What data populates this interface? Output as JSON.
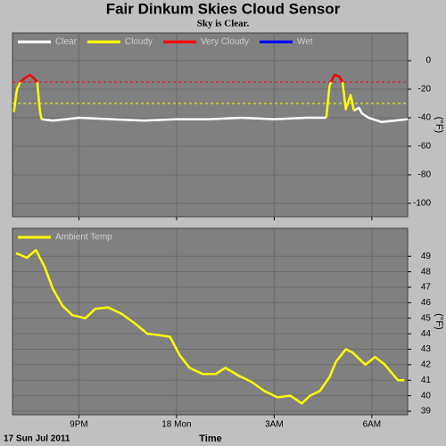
{
  "chart_data": [
    {
      "type": "line",
      "title": "Fair Dinkum Skies Cloud Sensor",
      "subtitle": "Sky is Clear.",
      "ylabel": "(°F)",
      "ylim": [
        -109.4,
        19.4
      ],
      "yticks": [
        0,
        -20,
        -40,
        -60,
        -80,
        -100
      ],
      "xlim": [
        18.96,
        31.1
      ],
      "xticks": [
        21,
        24,
        27,
        30
      ],
      "grid": true,
      "legend": "top-left",
      "x": [
        19.0,
        19.1,
        19.2,
        19.35,
        19.5,
        19.65,
        19.72,
        19.8,
        19.85,
        20.2,
        21.0,
        22.0,
        23.0,
        24.0,
        25.0,
        26.0,
        27.0,
        28.0,
        28.6,
        28.7,
        28.75,
        28.85,
        29.0,
        29.1,
        29.2,
        29.35,
        29.45,
        29.6,
        29.7,
        29.9,
        30.3,
        30.7,
        31.1
      ],
      "series": [
        {
          "name": "Clear",
          "color": "#ffffff",
          "values": [
            null,
            null,
            null,
            null,
            null,
            null,
            null,
            null,
            -41,
            -42,
            -40,
            -41,
            -42,
            -41,
            -41,
            -40,
            -41,
            -40,
            -40,
            null,
            null,
            null,
            null,
            null,
            null,
            null,
            -35,
            -33,
            -37,
            -40,
            -43,
            -42,
            -41
          ]
        },
        {
          "name": "Cloudy",
          "color": "#ffff00",
          "values": [
            -36,
            -20,
            -15,
            null,
            null,
            null,
            -15,
            -35,
            -41,
            null,
            null,
            null,
            null,
            null,
            null,
            null,
            null,
            null,
            -40,
            -18,
            -15,
            null,
            null,
            -15,
            -34,
            -24,
            -35,
            null,
            null,
            null,
            null,
            null,
            null
          ]
        },
        {
          "name": "Very Cloudy",
          "color": "#ff0000",
          "values": [
            null,
            null,
            -15,
            -12,
            -10,
            -13,
            -15,
            null,
            null,
            null,
            null,
            null,
            null,
            null,
            null,
            null,
            null,
            null,
            null,
            null,
            -15,
            -10,
            -11,
            -15,
            null,
            null,
            null,
            null,
            null,
            null,
            null,
            null,
            null
          ]
        },
        {
          "name": "Wet",
          "color": "#0000ff",
          "values": [
            null,
            null,
            null,
            null,
            null,
            null,
            null,
            null,
            null,
            null,
            null,
            null,
            null,
            null,
            null,
            null,
            null,
            null,
            null,
            null,
            null,
            null,
            null,
            null,
            null,
            null,
            null,
            null,
            null,
            null,
            null,
            null,
            null
          ]
        }
      ],
      "thresholds": [
        {
          "value": -15,
          "color": "#ff0000"
        },
        {
          "value": -30,
          "color": "#ffff00"
        }
      ]
    },
    {
      "type": "line",
      "xlabel": "Time",
      "annotation": "17 Sun Jul 2011",
      "ylabel": "(°F)",
      "ylim": [
        38.77,
        50.8
      ],
      "yticks": [
        39,
        40,
        41,
        42,
        43,
        44,
        45,
        46,
        47,
        48,
        49
      ],
      "xlim": [
        18.96,
        31.1
      ],
      "xticks": [
        {
          "value": 21,
          "label": "9PM"
        },
        {
          "value": 24,
          "label": "18 Mon"
        },
        {
          "value": 27,
          "label": "3AM"
        },
        {
          "value": 30,
          "label": "6AM"
        }
      ],
      "grid": true,
      "legend": "top-left",
      "x": [
        19.07,
        19.4,
        19.68,
        19.95,
        20.2,
        20.5,
        20.8,
        21.2,
        21.5,
        21.9,
        22.3,
        22.7,
        23.1,
        23.5,
        23.8,
        24.1,
        24.4,
        24.8,
        25.2,
        25.5,
        25.9,
        26.3,
        26.7,
        27.1,
        27.5,
        27.85,
        28.1,
        28.4,
        28.7,
        28.9,
        29.2,
        29.4,
        29.8,
        30.1,
        30.4,
        30.8,
        31.0
      ],
      "series": [
        {
          "name": "Ambient Temp",
          "color": "#ffff00",
          "values": [
            49.2,
            48.9,
            49.4,
            48.3,
            46.9,
            45.8,
            45.2,
            45.0,
            45.6,
            45.7,
            45.3,
            44.7,
            44.0,
            43.9,
            43.8,
            42.6,
            41.8,
            41.4,
            41.4,
            41.8,
            41.3,
            40.9,
            40.3,
            39.9,
            40.0,
            39.5,
            40.0,
            40.3,
            41.2,
            42.2,
            43.0,
            42.8,
            42.0,
            42.5,
            42.0,
            41.0,
            41.0
          ]
        }
      ]
    }
  ]
}
